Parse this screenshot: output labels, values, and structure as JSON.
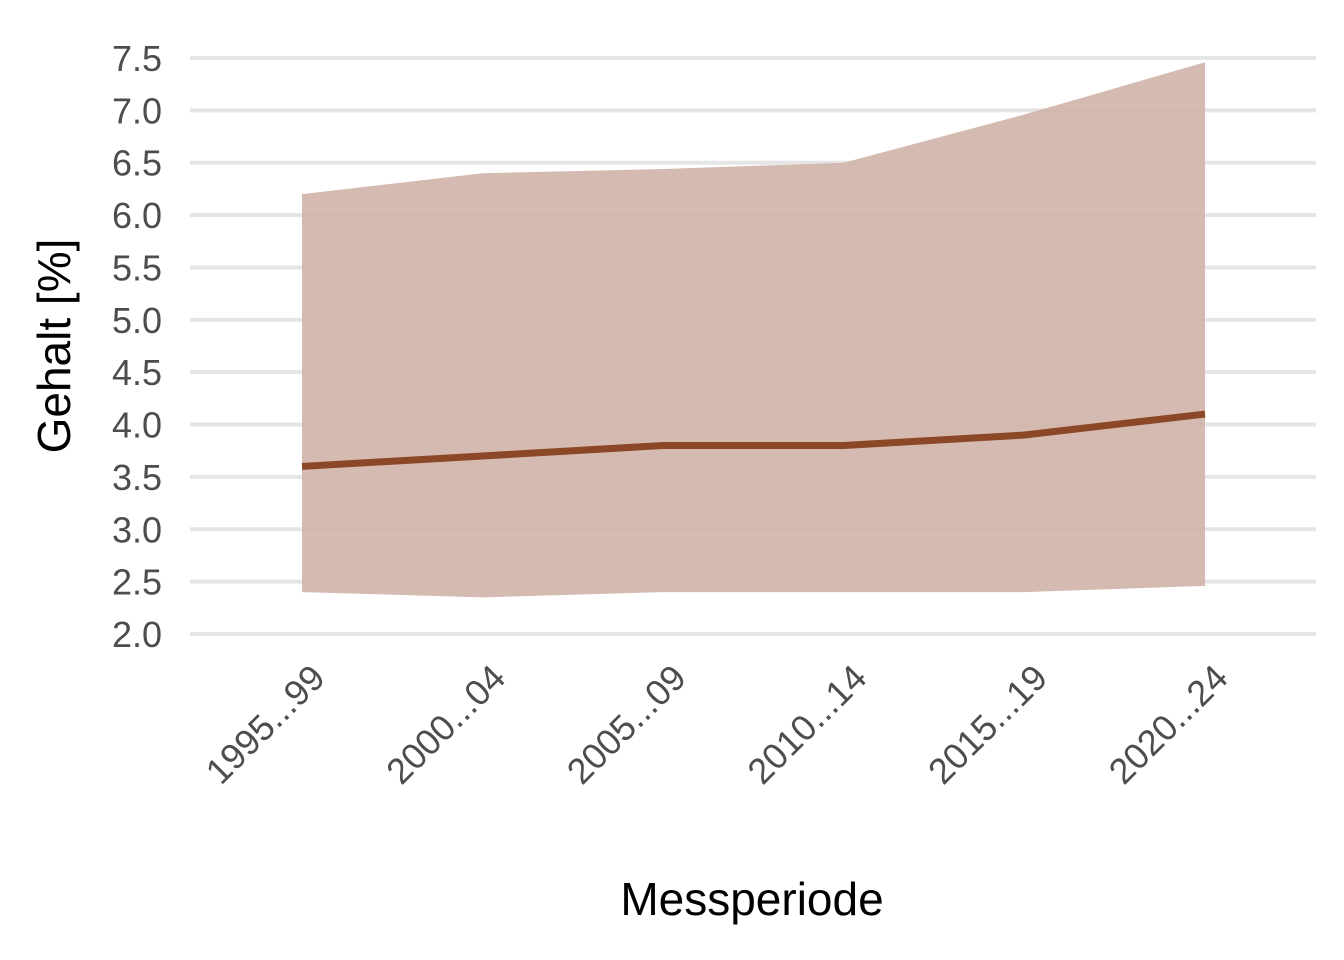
{
  "chart_data": {
    "type": "area",
    "categories": [
      "1995...99",
      "2000...04",
      "2005...09",
      "2010...14",
      "2015...19",
      "2020...24"
    ],
    "series": [
      {
        "role": "band",
        "lower": [
          2.4,
          2.35,
          2.4,
          2.4,
          2.4,
          2.46
        ],
        "upper": [
          6.2,
          6.4,
          6.44,
          6.5,
          6.96,
          7.46
        ]
      },
      {
        "role": "line",
        "values": [
          3.6,
          3.7,
          3.8,
          3.8,
          3.9,
          4.1
        ]
      }
    ],
    "xlabel": "Messperiode",
    "ylabel": "Gehalt [%]",
    "ylim": [
      2.0,
      7.5
    ],
    "yticks": [
      2.0,
      2.5,
      3.0,
      3.5,
      4.0,
      4.5,
      5.0,
      5.5,
      6.0,
      6.5,
      7.0,
      7.5
    ],
    "ytick_labels": [
      "2.0",
      "2.5",
      "3.0",
      "3.5",
      "4.0",
      "4.5",
      "5.0",
      "5.5",
      "6.0",
      "6.5",
      "7.0",
      "7.5"
    ],
    "grid": "horizontal",
    "legend": "none",
    "colors": {
      "line": "#8b4726",
      "band": "#cfb3a7",
      "grid": "#e5e5e5"
    }
  }
}
